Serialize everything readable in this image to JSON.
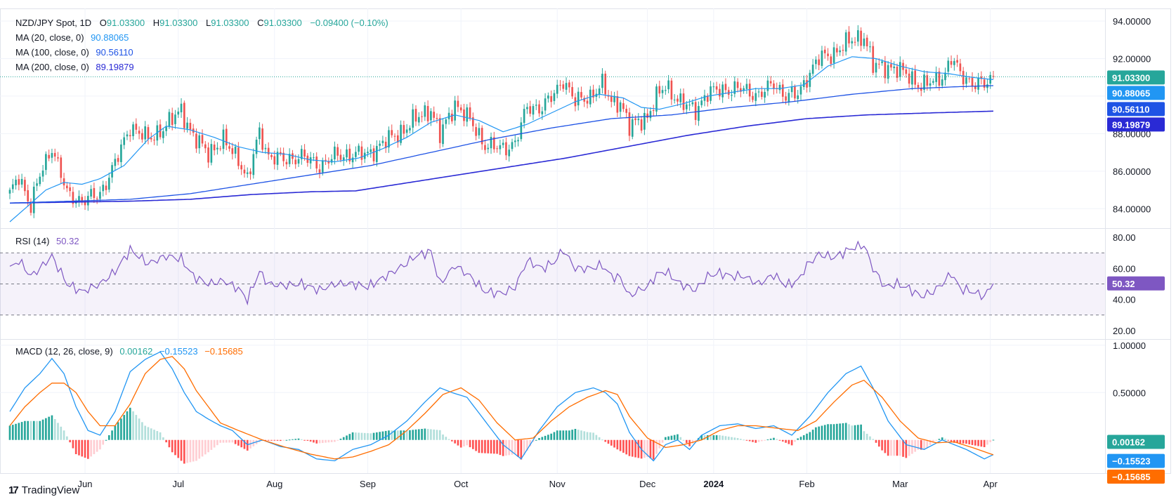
{
  "colors": {
    "up": "#26a69a",
    "down": "#ef5350",
    "ma20": "#2196f3",
    "ma100": "#1e53e5",
    "ma200": "#2a2ad5",
    "rsi": "#7e57c2",
    "macd": "#2196f3",
    "signal": "#ff6d00",
    "hist_up_strong": "#26a69a",
    "hist_up_weak": "#b2dfdb",
    "hist_down_strong": "#ff5252",
    "hist_down_weak": "#ffcdd2",
    "grid": "#f0f3fa",
    "border": "#e0e3eb"
  },
  "header": {
    "symbol": "NZD/JPY Spot, 1D",
    "o_label": "O",
    "o_value": "91.03300",
    "h_label": "H",
    "h_value": "91.03300",
    "l_label": "L",
    "l_value": "91.03300",
    "c_label": "C",
    "c_value": "91.03300",
    "change": "−0.09400 (−0.10%)"
  },
  "indicators": {
    "ma20_label": "MA (20, close, 0)",
    "ma20_value": "90.88065",
    "ma100_label": "MA (100, close, 0)",
    "ma100_value": "90.56110",
    "ma200_label": "MA (200, close, 0)",
    "ma200_value": "89.19879",
    "rsi_label": "RSI (14)",
    "rsi_value": "50.32",
    "macd_label": "MACD (12, 26, close, 9)",
    "macd_hist_value": "0.00162",
    "macd_line_value": "−0.15523",
    "macd_signal_value": "−0.15685"
  },
  "price_axis": {
    "ticks": [
      "94.00000",
      "92.00000",
      "90.00000",
      "88.00000",
      "86.00000",
      "84.00000"
    ],
    "tags": {
      "close": "91.03300",
      "ma20": "90.88065",
      "ma100": "90.56110",
      "ma200": "89.19879"
    }
  },
  "rsi_axis": {
    "ticks": [
      "80.00",
      "60.00",
      "40.00",
      "20.00"
    ],
    "tag": "50.32"
  },
  "macd_axis": {
    "ticks": [
      "1.00000",
      "0.50000"
    ],
    "tags": {
      "hist": "0.00162",
      "macd": "−0.15523",
      "signal": "−0.15685"
    }
  },
  "time_axis": {
    "labels": [
      "Jun",
      "Jul",
      "Aug",
      "Sep",
      "Oct",
      "Nov",
      "Dec",
      "2024",
      "Feb",
      "Mar",
      "Apr"
    ],
    "bold": [
      "2024"
    ]
  },
  "footer": {
    "brand": "TradingView",
    "logo": "17"
  },
  "chart_data": {
    "type": "candlestick",
    "title": "NZD/JPY Spot, 1D",
    "price_range": [
      83.0,
      94.6
    ],
    "rsi_range": [
      15,
      85
    ],
    "rsi_bands": [
      30,
      50,
      70
    ],
    "macd_range": [
      -0.35,
      1.05
    ],
    "anchors": [
      [
        0,
        84.7
      ],
      [
        3,
        85.8
      ],
      [
        7,
        84.1
      ],
      [
        10,
        85.8
      ],
      [
        14,
        87.3
      ],
      [
        19,
        84.8
      ],
      [
        24,
        84.4
      ],
      [
        30,
        84.8
      ],
      [
        35,
        86.4
      ],
      [
        40,
        88.4
      ],
      [
        46,
        87.7
      ],
      [
        52,
        88.4
      ],
      [
        57,
        89.3
      ],
      [
        61,
        87.8
      ],
      [
        66,
        87.0
      ],
      [
        71,
        87.6
      ],
      [
        76,
        86.7
      ],
      [
        79,
        85.5
      ],
      [
        83,
        88.1
      ],
      [
        86,
        86.8
      ],
      [
        91,
        86.6
      ],
      [
        97,
        86.8
      ],
      [
        103,
        86.3
      ],
      [
        108,
        86.8
      ],
      [
        114,
        86.9
      ],
      [
        119,
        86.9
      ],
      [
        125,
        87.6
      ],
      [
        131,
        88.2
      ],
      [
        135,
        88.8
      ],
      [
        140,
        89.3
      ],
      [
        143,
        87.9
      ],
      [
        148,
        89.6
      ],
      [
        153,
        88.7
      ],
      [
        158,
        87.4
      ],
      [
        164,
        87.2
      ],
      [
        168,
        87.5
      ],
      [
        172,
        89.4
      ],
      [
        177,
        89.4
      ],
      [
        181,
        90.1
      ],
      [
        184,
        90.9
      ],
      [
        188,
        89.7
      ],
      [
        193,
        90.0
      ],
      [
        197,
        90.6
      ],
      [
        200,
        89.7
      ],
      [
        203,
        89.7
      ],
      [
        206,
        88.3
      ],
      [
        209,
        88.7
      ],
      [
        212,
        88.9
      ],
      [
        215,
        89.9
      ],
      [
        218,
        90.6
      ],
      [
        223,
        89.6
      ],
      [
        228,
        89.3
      ],
      [
        232,
        90.1
      ],
      [
        236,
        90.4
      ],
      [
        240,
        90.3
      ],
      [
        244,
        90.4
      ],
      [
        249,
        90.0
      ],
      [
        254,
        90.7
      ],
      [
        258,
        90.0
      ],
      [
        262,
        90.1
      ],
      [
        265,
        91.0
      ],
      [
        269,
        92.0
      ],
      [
        274,
        92.3
      ],
      [
        280,
        93.0
      ],
      [
        284,
        93.2
      ],
      [
        287,
        91.6
      ],
      [
        291,
        91.6
      ],
      [
        295,
        91.4
      ],
      [
        299,
        91.1
      ],
      [
        303,
        90.5
      ],
      [
        307,
        90.8
      ],
      [
        311,
        91.2
      ],
      [
        313,
        92.0
      ],
      [
        316,
        91.2
      ],
      [
        320,
        90.7
      ],
      [
        324,
        90.6
      ],
      [
        327,
        91.0
      ]
    ],
    "ma20_series": [
      [
        0,
        83.3
      ],
      [
        5,
        84.0
      ],
      [
        12,
        85.0
      ],
      [
        18,
        85.4
      ],
      [
        24,
        85.3
      ],
      [
        30,
        85.6
      ],
      [
        38,
        86.3
      ],
      [
        46,
        87.7
      ],
      [
        52,
        88.4
      ],
      [
        60,
        88.2
      ],
      [
        68,
        87.8
      ],
      [
        76,
        87.3
      ],
      [
        84,
        87.0
      ],
      [
        92,
        86.9
      ],
      [
        100,
        86.6
      ],
      [
        108,
        86.5
      ],
      [
        116,
        86.7
      ],
      [
        124,
        87.2
      ],
      [
        132,
        87.8
      ],
      [
        140,
        88.6
      ],
      [
        148,
        89.0
      ],
      [
        156,
        88.7
      ],
      [
        164,
        88.1
      ],
      [
        172,
        88.5
      ],
      [
        180,
        89.1
      ],
      [
        188,
        89.7
      ],
      [
        196,
        90.1
      ],
      [
        204,
        89.9
      ],
      [
        210,
        89.4
      ],
      [
        216,
        89.3
      ],
      [
        224,
        89.6
      ],
      [
        232,
        90.0
      ],
      [
        240,
        90.2
      ],
      [
        248,
        90.4
      ],
      [
        256,
        90.4
      ],
      [
        264,
        90.6
      ],
      [
        272,
        91.6
      ],
      [
        280,
        92.1
      ],
      [
        288,
        92.0
      ],
      [
        296,
        91.6
      ],
      [
        304,
        91.3
      ],
      [
        312,
        91.2
      ],
      [
        320,
        91.0
      ],
      [
        327,
        90.88
      ]
    ],
    "ma100_series": [
      [
        0,
        84.3
      ],
      [
        20,
        84.4
      ],
      [
        40,
        84.5
      ],
      [
        60,
        84.8
      ],
      [
        80,
        85.3
      ],
      [
        100,
        85.8
      ],
      [
        120,
        86.3
      ],
      [
        140,
        87.0
      ],
      [
        160,
        87.7
      ],
      [
        180,
        88.3
      ],
      [
        200,
        88.8
      ],
      [
        220,
        89.0
      ],
      [
        240,
        89.4
      ],
      [
        260,
        89.7
      ],
      [
        280,
        90.1
      ],
      [
        300,
        90.4
      ],
      [
        315,
        90.5
      ],
      [
        327,
        90.56
      ]
    ],
    "ma200_series": [
      [
        0,
        84.3
      ],
      [
        20,
        84.35
      ],
      [
        40,
        84.4
      ],
      [
        60,
        84.5
      ],
      [
        80,
        84.75
      ],
      [
        100,
        84.9
      ],
      [
        115,
        84.95
      ],
      [
        125,
        85.2
      ],
      [
        145,
        85.7
      ],
      [
        165,
        86.2
      ],
      [
        185,
        86.7
      ],
      [
        205,
        87.3
      ],
      [
        225,
        87.9
      ],
      [
        245,
        88.4
      ],
      [
        265,
        88.8
      ],
      [
        285,
        89.0
      ],
      [
        305,
        89.1
      ],
      [
        327,
        89.2
      ]
    ],
    "rsi_series": [
      [
        0,
        60
      ],
      [
        3,
        65
      ],
      [
        7,
        55
      ],
      [
        10,
        60
      ],
      [
        14,
        68
      ],
      [
        19,
        50
      ],
      [
        24,
        45
      ],
      [
        30,
        50
      ],
      [
        35,
        58
      ],
      [
        40,
        72
      ],
      [
        46,
        63
      ],
      [
        52,
        68
      ],
      [
        57,
        66
      ],
      [
        61,
        55
      ],
      [
        66,
        50
      ],
      [
        71,
        52
      ],
      [
        76,
        47
      ],
      [
        79,
        40
      ],
      [
        83,
        58
      ],
      [
        86,
        50
      ],
      [
        91,
        49
      ],
      [
        97,
        50
      ],
      [
        103,
        46
      ],
      [
        108,
        50
      ],
      [
        114,
        50
      ],
      [
        119,
        48
      ],
      [
        125,
        55
      ],
      [
        131,
        62
      ],
      [
        135,
        68
      ],
      [
        140,
        71
      ],
      [
        143,
        50
      ],
      [
        148,
        62
      ],
      [
        153,
        55
      ],
      [
        158,
        45
      ],
      [
        164,
        44
      ],
      [
        168,
        48
      ],
      [
        172,
        65
      ],
      [
        177,
        60
      ],
      [
        181,
        64
      ],
      [
        184,
        72
      ],
      [
        188,
        60
      ],
      [
        193,
        60
      ],
      [
        197,
        62
      ],
      [
        200,
        55
      ],
      [
        203,
        54
      ],
      [
        206,
        42
      ],
      [
        209,
        46
      ],
      [
        212,
        48
      ],
      [
        215,
        56
      ],
      [
        218,
        58
      ],
      [
        223,
        50
      ],
      [
        228,
        46
      ],
      [
        232,
        55
      ],
      [
        236,
        57
      ],
      [
        240,
        55
      ],
      [
        244,
        55
      ],
      [
        249,
        50
      ],
      [
        254,
        56
      ],
      [
        258,
        49
      ],
      [
        262,
        52
      ],
      [
        265,
        62
      ],
      [
        269,
        69
      ],
      [
        274,
        67
      ],
      [
        280,
        73
      ],
      [
        284,
        75
      ],
      [
        287,
        60
      ],
      [
        291,
        48
      ],
      [
        295,
        50
      ],
      [
        299,
        47
      ],
      [
        303,
        42
      ],
      [
        307,
        45
      ],
      [
        311,
        52
      ],
      [
        313,
        57
      ],
      [
        316,
        47
      ],
      [
        320,
        45
      ],
      [
        324,
        42
      ],
      [
        327,
        50.32
      ]
    ],
    "macd_series": [
      [
        0,
        0.3
      ],
      [
        5,
        0.55
      ],
      [
        10,
        0.7
      ],
      [
        14,
        0.86
      ],
      [
        18,
        0.7
      ],
      [
        22,
        0.35
      ],
      [
        26,
        0.1
      ],
      [
        30,
        0.05
      ],
      [
        35,
        0.3
      ],
      [
        40,
        0.72
      ],
      [
        45,
        0.85
      ],
      [
        50,
        0.93
      ],
      [
        54,
        0.75
      ],
      [
        58,
        0.5
      ],
      [
        62,
        0.3
      ],
      [
        66,
        0.22
      ],
      [
        70,
        0.15
      ],
      [
        74,
        0.1
      ],
      [
        79,
        -0.05
      ],
      [
        84,
        0.0
      ],
      [
        90,
        -0.07
      ],
      [
        96,
        -0.1
      ],
      [
        102,
        -0.2
      ],
      [
        108,
        -0.22
      ],
      [
        114,
        -0.1
      ],
      [
        120,
        -0.05
      ],
      [
        126,
        0.05
      ],
      [
        132,
        0.2
      ],
      [
        138,
        0.4
      ],
      [
        143,
        0.55
      ],
      [
        147,
        0.5
      ],
      [
        152,
        0.45
      ],
      [
        158,
        0.2
      ],
      [
        164,
        -0.05
      ],
      [
        170,
        -0.2
      ],
      [
        176,
        0.1
      ],
      [
        182,
        0.35
      ],
      [
        188,
        0.5
      ],
      [
        194,
        0.55
      ],
      [
        198,
        0.5
      ],
      [
        202,
        0.38
      ],
      [
        206,
        0.08
      ],
      [
        210,
        -0.1
      ],
      [
        214,
        -0.22
      ],
      [
        218,
        -0.05
      ],
      [
        222,
        0.0
      ],
      [
        226,
        -0.1
      ],
      [
        230,
        0.05
      ],
      [
        236,
        0.15
      ],
      [
        242,
        0.17
      ],
      [
        248,
        0.12
      ],
      [
        254,
        0.15
      ],
      [
        260,
        0.05
      ],
      [
        266,
        0.25
      ],
      [
        272,
        0.5
      ],
      [
        278,
        0.7
      ],
      [
        283,
        0.78
      ],
      [
        287,
        0.55
      ],
      [
        292,
        0.2
      ],
      [
        298,
        -0.05
      ],
      [
        304,
        -0.1
      ],
      [
        310,
        0.0
      ],
      [
        314,
        -0.05
      ],
      [
        318,
        -0.1
      ],
      [
        324,
        -0.2
      ],
      [
        327,
        -0.155
      ]
    ],
    "signal_series": [
      [
        0,
        0.15
      ],
      [
        5,
        0.35
      ],
      [
        10,
        0.5
      ],
      [
        14,
        0.6
      ],
      [
        18,
        0.6
      ],
      [
        22,
        0.5
      ],
      [
        26,
        0.3
      ],
      [
        30,
        0.15
      ],
      [
        35,
        0.15
      ],
      [
        40,
        0.38
      ],
      [
        45,
        0.7
      ],
      [
        50,
        0.85
      ],
      [
        54,
        0.88
      ],
      [
        58,
        0.75
      ],
      [
        62,
        0.52
      ],
      [
        66,
        0.35
      ],
      [
        70,
        0.18
      ],
      [
        76,
        0.1
      ],
      [
        84,
        0.0
      ],
      [
        92,
        -0.08
      ],
      [
        100,
        -0.15
      ],
      [
        108,
        -0.2
      ],
      [
        114,
        -0.18
      ],
      [
        120,
        -0.12
      ],
      [
        126,
        -0.05
      ],
      [
        132,
        0.1
      ],
      [
        138,
        0.28
      ],
      [
        144,
        0.48
      ],
      [
        150,
        0.55
      ],
      [
        156,
        0.42
      ],
      [
        162,
        0.18
      ],
      [
        168,
        0.0
      ],
      [
        174,
        0.02
      ],
      [
        180,
        0.2
      ],
      [
        186,
        0.35
      ],
      [
        192,
        0.45
      ],
      [
        198,
        0.52
      ],
      [
        202,
        0.48
      ],
      [
        206,
        0.25
      ],
      [
        212,
        0.02
      ],
      [
        218,
        -0.08
      ],
      [
        224,
        -0.05
      ],
      [
        230,
        0.0
      ],
      [
        236,
        0.1
      ],
      [
        242,
        0.15
      ],
      [
        248,
        0.15
      ],
      [
        256,
        0.12
      ],
      [
        262,
        0.1
      ],
      [
        268,
        0.2
      ],
      [
        274,
        0.4
      ],
      [
        280,
        0.58
      ],
      [
        284,
        0.63
      ],
      [
        290,
        0.45
      ],
      [
        296,
        0.2
      ],
      [
        302,
        0.02
      ],
      [
        308,
        -0.03
      ],
      [
        314,
        -0.02
      ],
      [
        320,
        -0.08
      ],
      [
        327,
        -0.157
      ]
    ]
  }
}
